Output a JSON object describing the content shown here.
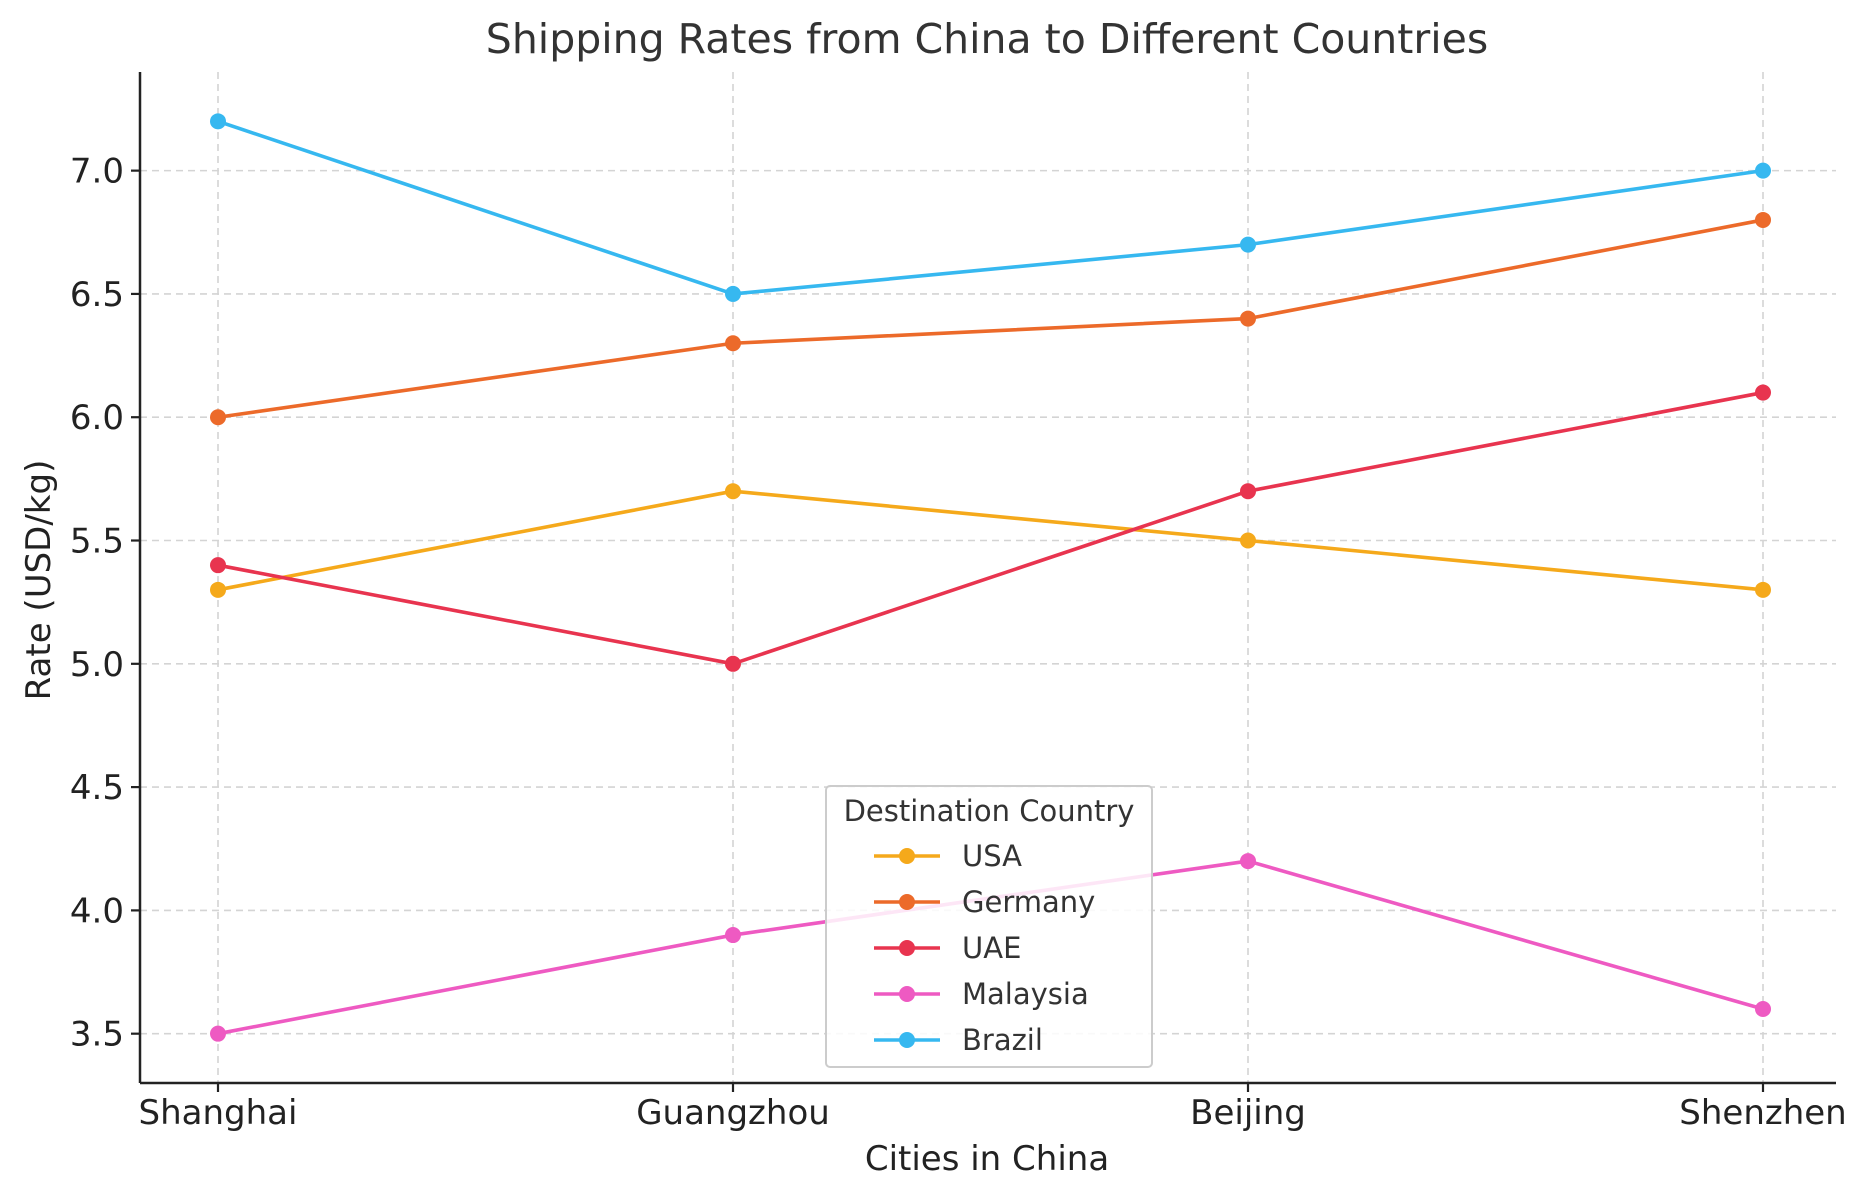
{
  "chart_data": {
    "type": "line",
    "title": "Shipping Rates from China to Different Countries",
    "xlabel": "Cities in China",
    "ylabel": "Rate (USD/kg)",
    "categories": [
      "Shanghai",
      "Guangzhou",
      "Beijing",
      "Shenzhen"
    ],
    "ylim": [
      3.3,
      7.4
    ],
    "yticks": [
      3.5,
      4.0,
      4.5,
      5.0,
      5.5,
      6.0,
      6.5,
      7.0
    ],
    "ytick_labels": [
      "3.5",
      "4.0",
      "4.5",
      "5.0",
      "5.5",
      "6.0",
      "6.5",
      "7.0"
    ],
    "grid": true,
    "legend": {
      "title": "Destination Country",
      "placement": "bottom-center"
    },
    "series": [
      {
        "name": "USA",
        "color": "#f5a91b",
        "values": [
          5.3,
          5.7,
          5.5,
          5.3
        ]
      },
      {
        "name": "Germany",
        "color": "#ec6a2a",
        "values": [
          6.0,
          6.3,
          6.4,
          6.8
        ]
      },
      {
        "name": "UAE",
        "color": "#e8344f",
        "values": [
          5.4,
          5.0,
          5.7,
          6.1
        ]
      },
      {
        "name": "Malaysia",
        "color": "#ee5ac2",
        "values": [
          3.5,
          3.9,
          4.2,
          3.6
        ]
      },
      {
        "name": "Brazil",
        "color": "#36b8f0",
        "values": [
          7.2,
          6.5,
          6.7,
          7.0
        ]
      }
    ]
  }
}
